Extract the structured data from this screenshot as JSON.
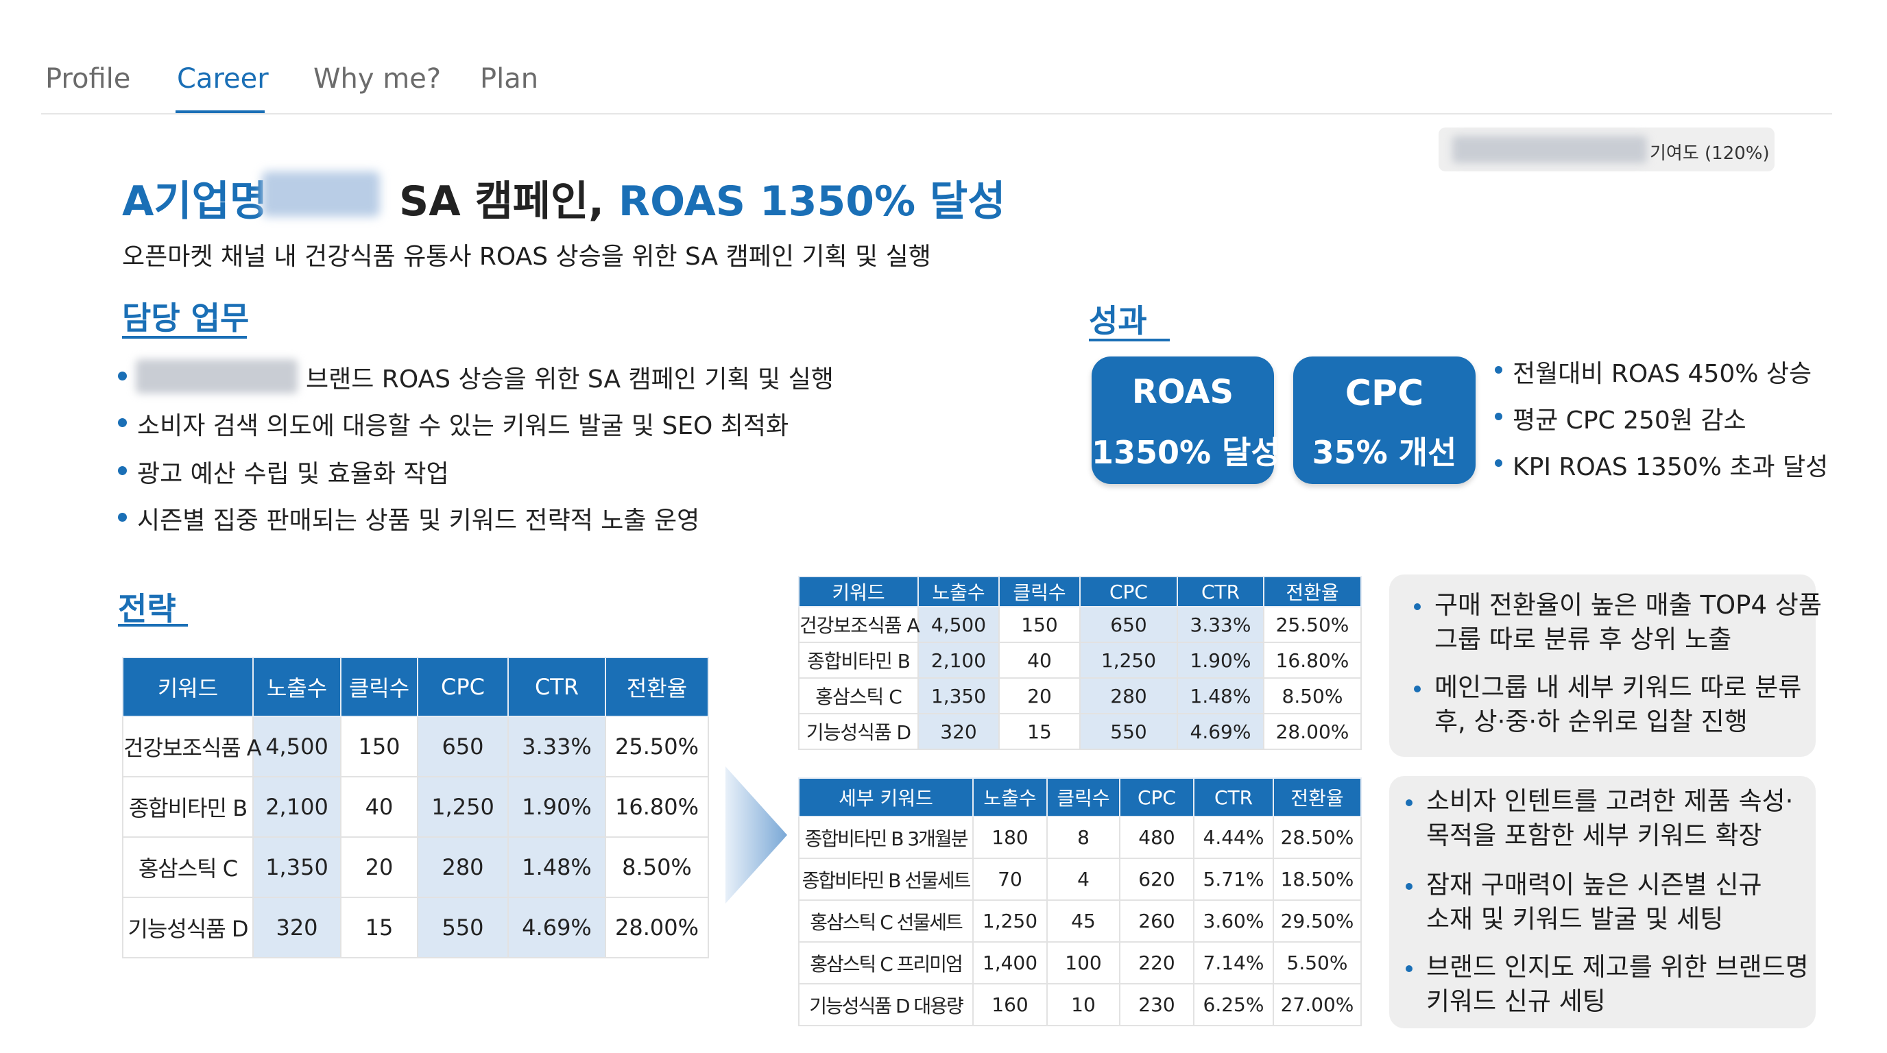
{
  "nav": {
    "tabs": [
      "Profile",
      "Career",
      "Why me?",
      "Plan"
    ],
    "active": "Career"
  },
  "contribution": {
    "label": "기여도 (120%)"
  },
  "headline": {
    "prefix": "A기업명",
    "middle": "SA 캠페인,",
    "suffix": "ROAS 1350% 달성"
  },
  "subtitle": "오픈마켓 채널 내 건강식품 유통사 ROAS 상승을 위한 SA 캠페인 기획 및 실행",
  "duties": {
    "title": "담당 업무",
    "items": [
      "브랜드 ROAS 상승을 위한 SA 캠페인 기획 및 실행",
      "소비자 검색 의도에 대응할 수 있는 키워드 발굴 및 SEO 최적화",
      "광고 예산 수립 및 효율화 작업",
      "시즌별 집중 판매되는 상품 및 키워드 전략적 노출 운영"
    ]
  },
  "results": {
    "title": "성과",
    "badges": [
      {
        "top": "ROAS",
        "bottom": "1350% 달성"
      },
      {
        "top": "CPC",
        "bottom": "35% 개선"
      }
    ],
    "items": [
      "전월대비 ROAS 450% 상승",
      "평균 CPC 250원 감소",
      "KPI ROAS 1350% 초과 달성"
    ]
  },
  "strategy": {
    "title": "전략",
    "main_table": {
      "headers": [
        "키워드",
        "노출수",
        "클릭수",
        "CPC",
        "CTR",
        "전환율"
      ],
      "rows": [
        [
          "건강보조식품 A",
          "4,500",
          "150",
          "650",
          "3.33%",
          "25.50%"
        ],
        [
          "종합비타민 B",
          "2,100",
          "40",
          "1,250",
          "1.90%",
          "16.80%"
        ],
        [
          "홍삼스틱 C",
          "1,350",
          "20",
          "280",
          "1.48%",
          "8.50%"
        ],
        [
          "기능성식품 D",
          "320",
          "15",
          "550",
          "4.69%",
          "28.00%"
        ]
      ]
    },
    "top_table": {
      "headers": [
        "키워드",
        "노출수",
        "클릭수",
        "CPC",
        "CTR",
        "전환율"
      ],
      "rows": [
        [
          "건강보조식품 A",
          "4,500",
          "150",
          "650",
          "3.33%",
          "25.50%"
        ],
        [
          "종합비타민 B",
          "2,100",
          "40",
          "1,250",
          "1.90%",
          "16.80%"
        ],
        [
          "홍삼스틱 C",
          "1,350",
          "20",
          "280",
          "1.48%",
          "8.50%"
        ],
        [
          "기능성식품 D",
          "320",
          "15",
          "550",
          "4.69%",
          "28.00%"
        ]
      ]
    },
    "detail_table": {
      "headers": [
        "세부 키워드",
        "노출수",
        "클릭수",
        "CPC",
        "CTR",
        "전환율"
      ],
      "rows": [
        [
          "종합비타민 B 3개월분",
          "180",
          "8",
          "480",
          "4.44%",
          "28.50%"
        ],
        [
          "종합비타민 B 선물세트",
          "70",
          "4",
          "620",
          "5.71%",
          "18.50%"
        ],
        [
          "홍삼스틱 C 선물세트",
          "1,250",
          "45",
          "260",
          "3.60%",
          "29.50%"
        ],
        [
          "홍삼스틱 C 프리미엄",
          "1,400",
          "100",
          "220",
          "7.14%",
          "5.50%"
        ],
        [
          "기능성식품 D 대용량",
          "160",
          "10",
          "230",
          "6.25%",
          "27.00%"
        ]
      ]
    },
    "notes_top": [
      [
        "구매 전환율이 높은 매출 TOP4 상품",
        "그룹 따로 분류 후 상위 노출"
      ],
      [
        "메인그룹 내 세부 키워드 따로 분류",
        "후, 상·중·하 순위로 입찰 진행"
      ]
    ],
    "notes_bottom": [
      [
        "소비자 인텐트를 고려한 제품 속성·",
        "목적을 포함한 세부 키워드 확장"
      ],
      [
        "잠재 구매력이 높은 시즌별 신규",
        "소재 및 키워드 발굴 및 세팅"
      ],
      [
        "브랜드 인지도 제고를 위한 브랜드명",
        "키워드 신규 세팅"
      ]
    ]
  },
  "colors": {
    "accent": "#1a6fb6",
    "highlight": "#dbe7f4",
    "note_bg": "#eeeeee"
  }
}
